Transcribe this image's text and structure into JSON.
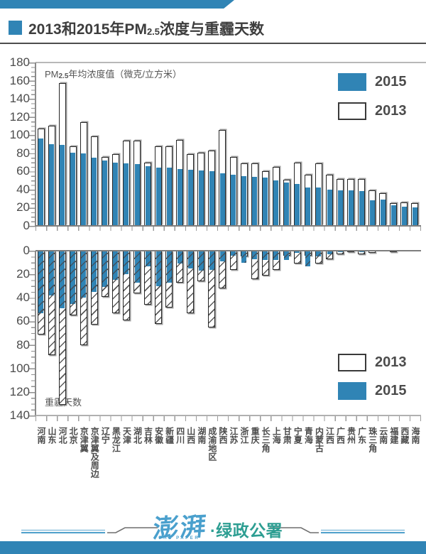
{
  "header": {
    "title_pre": "2013和2015年PM",
    "title_sub": "2.5",
    "title_post": "浓度与重霾天数"
  },
  "colors": {
    "bar_blue": "#3084b5",
    "bar_outline": "#262626",
    "accent_teal": "#2d9e92",
    "brand_blue": "#4aa0cd",
    "text_gray": "#4c4c4c"
  },
  "chart_data": [
    {
      "type": "bar",
      "title_pre": "PM",
      "title_sub": "2.5",
      "title_post": "年均浓度值（微克/立方米）",
      "ylim": [
        0,
        180
      ],
      "ytick_step": 20,
      "grid": false,
      "legend_position": "top-right",
      "legend": [
        {
          "label": "2015",
          "swatch": "blue"
        },
        {
          "label": "2013",
          "swatch": "white"
        }
      ],
      "categories": [
        "河南",
        "山东",
        "河北",
        "北京",
        "京津翼",
        "京津翼及周边",
        "辽宁",
        "黑龙江",
        "天津",
        "湖北",
        "吉林",
        "安徽",
        "新疆",
        "四川",
        "山西",
        "湖南",
        "成渝地区",
        "陕西",
        "江苏",
        "浙江",
        "重庆",
        "长三角",
        "上海",
        "甘肃",
        "宁夏",
        "青海",
        "内蒙古",
        "江西",
        "广西",
        "贵州",
        "广东",
        "珠三角",
        "云南",
        "福建",
        "西藏",
        "海南"
      ],
      "series": [
        {
          "name": "2013",
          "values": [
            107,
            110,
            157,
            88,
            114,
            99,
            76,
            79,
            94,
            94,
            70,
            88,
            88,
            95,
            79,
            81,
            83,
            106,
            76,
            69,
            69,
            60,
            65,
            51,
            70,
            56,
            69,
            56,
            52,
            52,
            52,
            39,
            36,
            25,
            26,
            25
          ]
        },
        {
          "name": "2015",
          "values": [
            96,
            90,
            89,
            81,
            80,
            75,
            72,
            70,
            69,
            68,
            66,
            64,
            64,
            63,
            62,
            61,
            60,
            58,
            56,
            55,
            54,
            53,
            50,
            48,
            46,
            42,
            42,
            40,
            39,
            39,
            38,
            28,
            29,
            23,
            21,
            20
          ]
        }
      ]
    },
    {
      "type": "bar",
      "inverted": true,
      "title": "重霾天数",
      "ylim": [
        0,
        140
      ],
      "ytick_step": 20,
      "grid": false,
      "legend_position": "bottom-right",
      "legend": [
        {
          "label": "2013",
          "swatch": "white-hatch"
        },
        {
          "label": "2015",
          "swatch": "blue-hatch"
        }
      ],
      "categories": [
        "河南",
        "山东",
        "河北",
        "北京",
        "京津翼",
        "京津翼及周边",
        "辽宁",
        "黑龙江",
        "天津",
        "湖北",
        "吉林",
        "安徽",
        "新疆",
        "四川",
        "山西",
        "湖南",
        "成渝地区",
        "陕西",
        "江苏",
        "浙江",
        "重庆",
        "长三角",
        "上海",
        "甘肃",
        "宁夏",
        "青海",
        "内蒙古",
        "江西",
        "广西",
        "贵州",
        "广东",
        "珠三角",
        "云南",
        "福建",
        "西藏",
        "海南"
      ],
      "series": [
        {
          "name": "2013",
          "values": [
            71,
            89,
            131,
            55,
            80,
            63,
            39,
            53,
            59,
            36,
            46,
            62,
            48,
            27,
            53,
            26,
            65,
            32,
            16,
            5,
            24,
            21,
            16,
            4,
            11,
            4,
            11,
            7,
            3,
            1,
            3,
            2,
            0,
            1,
            0,
            0
          ]
        },
        {
          "name": "2015",
          "values": [
            53,
            38,
            49,
            45,
            40,
            35,
            31,
            25,
            20,
            27,
            13,
            30,
            27,
            11,
            15,
            17,
            16,
            9,
            4,
            10,
            7,
            8,
            8,
            8,
            2,
            13,
            5,
            3,
            1,
            0,
            1,
            0,
            0,
            0,
            0,
            0
          ]
        }
      ]
    }
  ],
  "footer": {
    "brand": "澎湃",
    "brand_sub": "THE PAPER",
    "channel": "·绿政公署"
  }
}
